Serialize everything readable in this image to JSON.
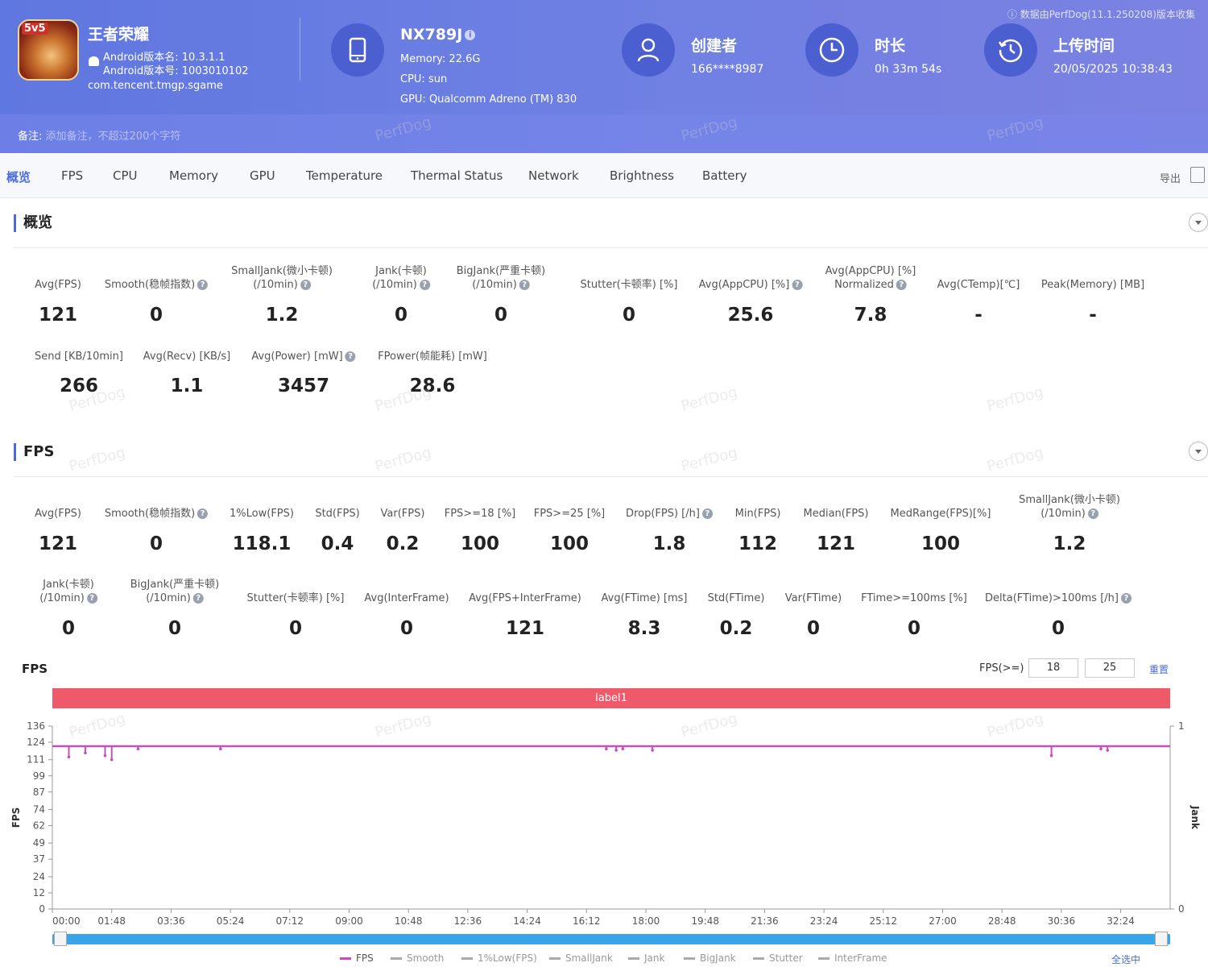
{
  "header": {
    "app_name": "王者荣耀",
    "android_version_name": "Android版本名: 10.3.1.1",
    "android_version_code": "Android版本号: 1003010102",
    "package": "com.tencent.tmgp.sgame",
    "badge": "5v5",
    "device": {
      "name": "NX789J",
      "memory": "Memory: 22.6G",
      "cpu": "CPU: sun",
      "gpu": "GPU: Qualcomm Adreno (TM) 830"
    },
    "creator": {
      "title": "创建者",
      "value": "166****8987"
    },
    "duration": {
      "title": "时长",
      "value": "0h 33m 54s"
    },
    "upload": {
      "title": "上传时间",
      "value": "20/05/2025 10:38:43"
    },
    "source_note": "数据由PerfDog(11.1.250208)版本收集",
    "remark_label": "备注:",
    "remark_placeholder": "添加备注，不超过200个字符"
  },
  "tabs": [
    "概览",
    "FPS",
    "CPU",
    "Memory",
    "GPU",
    "Temperature",
    "Thermal Status",
    "Network",
    "Brightness",
    "Battery"
  ],
  "export_label": "导出",
  "watermark": "PerfDog",
  "overview": {
    "title": "概览",
    "row1": [
      {
        "l1": "",
        "l2": "Avg(FPS)",
        "help": false,
        "value": "121"
      },
      {
        "l1": "",
        "l2": "Smooth(稳帧指数)",
        "help": true,
        "value": "0"
      },
      {
        "l1": "SmallJank(微小卡顿)",
        "l2": "(/10min)",
        "help": true,
        "value": "1.2"
      },
      {
        "l1": "Jank(卡顿)",
        "l2": "(/10min)",
        "help": true,
        "value": "0"
      },
      {
        "l1": "BigJank(严重卡顿)",
        "l2": "(/10min)",
        "help": true,
        "value": "0"
      },
      {
        "l1": "",
        "l2": "Stutter(卡顿率) [%]",
        "help": false,
        "value": "0"
      },
      {
        "l1": "",
        "l2": "Avg(AppCPU) [%]",
        "help": true,
        "value": "25.6"
      },
      {
        "l1": "Avg(AppCPU) [%]",
        "l2": "Normalized",
        "help": true,
        "value": "7.8"
      },
      {
        "l1": "",
        "l2": "Avg(CTemp)[℃]",
        "help": false,
        "value": "-"
      },
      {
        "l1": "",
        "l2": "Peak(Memory) [MB]",
        "help": false,
        "value": "-"
      }
    ],
    "row2": [
      {
        "l2": "Send [KB/10min]",
        "help": false,
        "value": "266"
      },
      {
        "l2": "Avg(Recv) [KB/s]",
        "help": false,
        "value": "1.1"
      },
      {
        "l2": "Avg(Power) [mW]",
        "help": true,
        "value": "3457"
      },
      {
        "l2": "FPower(帧能耗) [mW]",
        "help": false,
        "value": "28.6"
      }
    ]
  },
  "fps": {
    "title": "FPS",
    "row1": [
      {
        "l1": "",
        "l2": "Avg(FPS)",
        "help": false,
        "value": "121"
      },
      {
        "l1": "",
        "l2": "Smooth(稳帧指数)",
        "help": true,
        "value": "0"
      },
      {
        "l1": "",
        "l2": "1%Low(FPS)",
        "help": false,
        "value": "118.1"
      },
      {
        "l1": "",
        "l2": "Std(FPS)",
        "help": false,
        "value": "0.4"
      },
      {
        "l1": "",
        "l2": "Var(FPS)",
        "help": false,
        "value": "0.2"
      },
      {
        "l1": "",
        "l2": "FPS>=18 [%]",
        "help": false,
        "value": "100"
      },
      {
        "l1": "",
        "l2": "FPS>=25 [%]",
        "help": false,
        "value": "100"
      },
      {
        "l1": "",
        "l2": "Drop(FPS) [/h]",
        "help": true,
        "value": "1.8"
      },
      {
        "l1": "",
        "l2": "Min(FPS)",
        "help": false,
        "value": "112"
      },
      {
        "l1": "",
        "l2": "Median(FPS)",
        "help": false,
        "value": "121"
      },
      {
        "l1": "",
        "l2": "MedRange(FPS)[%]",
        "help": false,
        "value": "100"
      },
      {
        "l1": "SmallJank(微小卡顿)",
        "l2": "(/10min)",
        "help": true,
        "value": "1.2"
      }
    ],
    "row2": [
      {
        "l1": "Jank(卡顿)",
        "l2": "(/10min)",
        "help": true,
        "value": "0"
      },
      {
        "l1": "BigJank(严重卡顿)",
        "l2": "(/10min)",
        "help": true,
        "value": "0"
      },
      {
        "l1": "",
        "l2": "Stutter(卡顿率) [%]",
        "help": false,
        "value": "0"
      },
      {
        "l1": "",
        "l2": "Avg(InterFrame)",
        "help": false,
        "value": "0"
      },
      {
        "l1": "",
        "l2": "Avg(FPS+InterFrame)",
        "help": false,
        "value": "121"
      },
      {
        "l1": "",
        "l2": "Avg(FTime) [ms]",
        "help": false,
        "value": "8.3"
      },
      {
        "l1": "",
        "l2": "Std(FTime)",
        "help": false,
        "value": "0.2"
      },
      {
        "l1": "",
        "l2": "Var(FTime)",
        "help": false,
        "value": "0"
      },
      {
        "l1": "",
        "l2": "FTime>=100ms [%]",
        "help": false,
        "value": "0"
      },
      {
        "l1": "",
        "l2": "Delta(FTime)>100ms [/h]",
        "help": true,
        "value": "0"
      }
    ]
  },
  "chart_panel": {
    "title": "FPS",
    "threshold_label": "FPS(>=)",
    "threshold_1": "18",
    "threshold_2": "25",
    "reset_label": "重置",
    "label_bar": "label1",
    "select_all": "全选中",
    "legend": [
      "FPS",
      "Smooth",
      "1%Low(FPS)",
      "SmallJank",
      "Jank",
      "BigJank",
      "Stutter",
      "InterFrame"
    ]
  },
  "chart_data": {
    "type": "line",
    "ylabel": "FPS",
    "y2label": "Jank",
    "yticks": [
      0,
      12,
      24,
      37,
      49,
      62,
      74,
      87,
      99,
      111,
      124,
      136
    ],
    "ylim": [
      0,
      136
    ],
    "y2ticks": [
      0,
      1
    ],
    "xticks": [
      "00:00",
      "01:48",
      "03:36",
      "05:24",
      "07:12",
      "09:00",
      "10:48",
      "12:36",
      "14:24",
      "16:12",
      "18:00",
      "19:48",
      "21:36",
      "23:24",
      "25:12",
      "27:00",
      "28:48",
      "30:36",
      "32:24"
    ],
    "series": [
      {
        "name": "FPS",
        "color": "#c64fbd",
        "baseline": 121,
        "dips": [
          [
            0.5,
            113
          ],
          [
            1.0,
            116
          ],
          [
            1.6,
            114
          ],
          [
            1.8,
            111
          ],
          [
            2.6,
            119
          ],
          [
            5.1,
            119
          ],
          [
            16.8,
            119
          ],
          [
            17.1,
            118
          ],
          [
            17.3,
            119
          ],
          [
            18.2,
            118
          ],
          [
            30.3,
            114
          ],
          [
            31.8,
            119
          ],
          [
            32.0,
            118
          ]
        ]
      }
    ]
  }
}
